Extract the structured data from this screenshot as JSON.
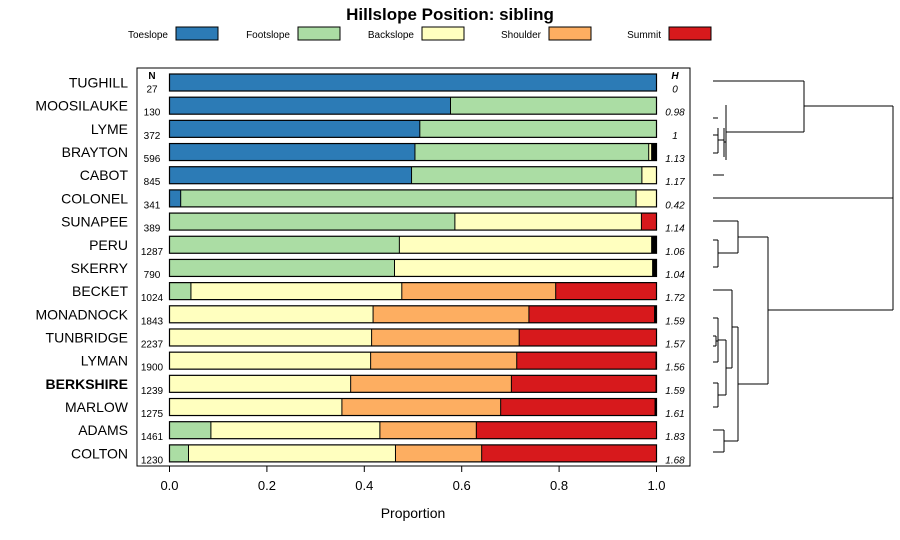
{
  "chart_data": {
    "type": "bar",
    "orientation": "horizontal-stacked",
    "title": "Hillslope Position: sibling",
    "xlabel": "Proportion",
    "ylabel": "",
    "xlim": [
      0,
      1
    ],
    "x_ticks": [
      "0.0",
      "0.2",
      "0.4",
      "0.6",
      "0.8",
      "1.0"
    ],
    "n_header": "N",
    "h_header": "H",
    "classes": [
      {
        "name": "Toeslope",
        "color": "#2c7bb6"
      },
      {
        "name": "Footslope",
        "color": "#abdda4"
      },
      {
        "name": "Backslope",
        "color": "#ffffbf"
      },
      {
        "name": "Shoulder",
        "color": "#fdae61"
      },
      {
        "name": "Summit",
        "color": "#d7191c"
      }
    ],
    "other_color": "#000000",
    "rows": [
      {
        "label": "TUGHILL",
        "bold": false,
        "n": "27",
        "h": "0",
        "values": [
          1.0,
          0,
          0,
          0,
          0
        ],
        "other": 0
      },
      {
        "label": "MOOSILAUKE",
        "bold": false,
        "n": "130",
        "h": "0.98",
        "values": [
          0.577,
          0.423,
          0,
          0,
          0
        ],
        "other": 0
      },
      {
        "label": "LYME",
        "bold": false,
        "n": "372",
        "h": "1",
        "values": [
          0.514,
          0.486,
          0,
          0,
          0
        ],
        "other": 0
      },
      {
        "label": "BRAYTON",
        "bold": false,
        "n": "596",
        "h": "1.13",
        "values": [
          0.504,
          0.48,
          0.006,
          0,
          0
        ],
        "other": 0.01
      },
      {
        "label": "CABOT",
        "bold": false,
        "n": "845",
        "h": "1.17",
        "values": [
          0.497,
          0.473,
          0.03,
          0,
          0
        ],
        "other": 0
      },
      {
        "label": "COLONEL",
        "bold": false,
        "n": "341",
        "h": "0.42",
        "values": [
          0.023,
          0.935,
          0.042,
          0,
          0
        ],
        "other": 0
      },
      {
        "label": "SUNAPEE",
        "bold": false,
        "n": "389",
        "h": "1.14",
        "values": [
          0,
          0.586,
          0.383,
          0,
          0.031
        ],
        "other": 0
      },
      {
        "label": "PERU",
        "bold": false,
        "n": "1287",
        "h": "1.06",
        "values": [
          0,
          0.472,
          0.518,
          0,
          0
        ],
        "other": 0.01
      },
      {
        "label": "SKERRY",
        "bold": false,
        "n": "790",
        "h": "1.04",
        "values": [
          0,
          0.462,
          0.53,
          0,
          0
        ],
        "other": 0.008
      },
      {
        "label": "BECKET",
        "bold": false,
        "n": "1024",
        "h": "1.72",
        "values": [
          0,
          0.044,
          0.433,
          0.316,
          0.207
        ],
        "other": 0
      },
      {
        "label": "MONADNOCK",
        "bold": false,
        "n": "1843",
        "h": "1.59",
        "values": [
          0,
          0,
          0.418,
          0.32,
          0.258
        ],
        "other": 0.004
      },
      {
        "label": "TUNBRIDGE",
        "bold": false,
        "n": "2237",
        "h": "1.57",
        "values": [
          0,
          0,
          0.415,
          0.303,
          0.281
        ],
        "other": 0.001
      },
      {
        "label": "LYMAN",
        "bold": false,
        "n": "1900",
        "h": "1.56",
        "values": [
          0,
          0,
          0.413,
          0.3,
          0.286
        ],
        "other": 0.001
      },
      {
        "label": "BERKSHIRE",
        "bold": true,
        "n": "1239",
        "h": "1.59",
        "values": [
          0,
          0,
          0.372,
          0.33,
          0.297
        ],
        "other": 0.001
      },
      {
        "label": "MARLOW",
        "bold": false,
        "n": "1275",
        "h": "1.61",
        "values": [
          0,
          0,
          0.354,
          0.326,
          0.317
        ],
        "other": 0.003
      },
      {
        "label": "ADAMS",
        "bold": false,
        "n": "1461",
        "h": "1.83",
        "values": [
          0,
          0.085,
          0.347,
          0.198,
          0.37
        ],
        "other": 0
      },
      {
        "label": "COLTON",
        "bold": false,
        "n": "1230",
        "h": "1.68",
        "values": [
          0,
          0.039,
          0.425,
          0.177,
          0.359
        ],
        "other": 0
      }
    ]
  }
}
